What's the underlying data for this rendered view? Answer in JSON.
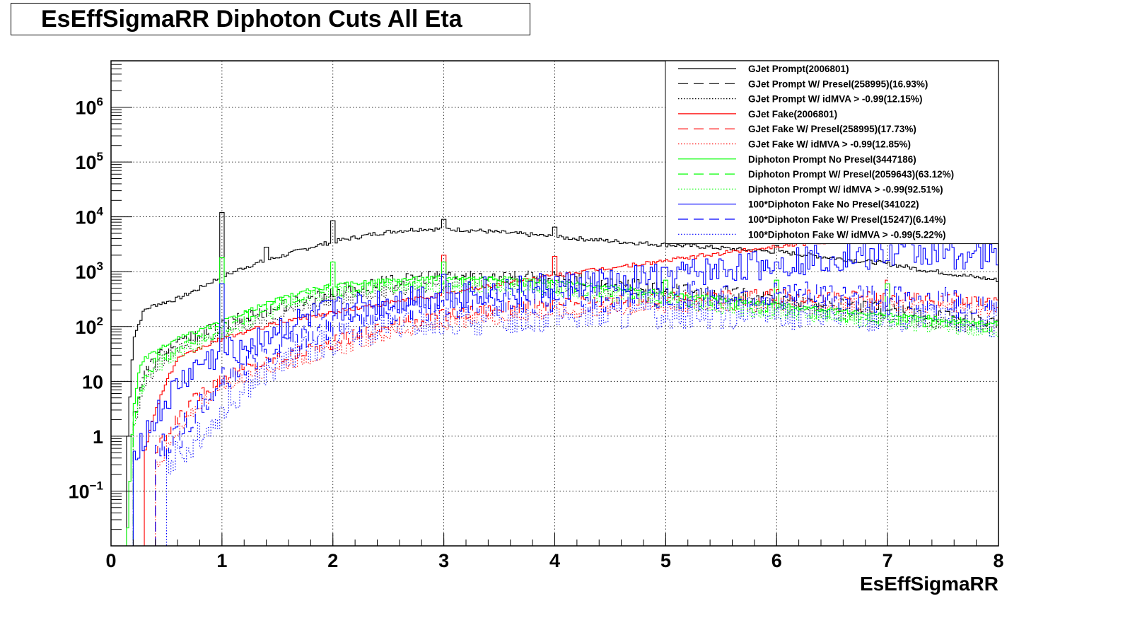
{
  "chart_data": {
    "type": "line",
    "title": "EsEffSigmaRR Diphoton Cuts All Eta",
    "xlabel": "EsEffSigmaRR",
    "ylabel": "",
    "xlim": [
      0,
      8
    ],
    "ylim": [
      0.01,
      7000000
    ],
    "log_y": true,
    "grid": true,
    "legend_placement": "top-right",
    "x_ticks": [
      "0",
      "1",
      "2",
      "3",
      "4",
      "5",
      "6",
      "7",
      "8"
    ],
    "y_ticks": [
      {
        "base": "10",
        "exp": "−1",
        "value": 0.1
      },
      {
        "base": "1",
        "exp": "",
        "value": 1
      },
      {
        "base": "10",
        "exp": "",
        "value": 10
      },
      {
        "base": "10",
        "exp": "2",
        "value": 100
      },
      {
        "base": "10",
        "exp": "3",
        "value": 1000
      },
      {
        "base": "10",
        "exp": "4",
        "value": 10000
      },
      {
        "base": "10",
        "exp": "5",
        "value": 100000
      },
      {
        "base": "10",
        "exp": "6",
        "value": 1000000
      }
    ],
    "series": [
      {
        "name": "GJet Prompt(2006801)",
        "color": "#000000",
        "dash": "solid",
        "x": [
          0.15,
          0.2,
          0.3,
          0.4,
          0.5,
          0.6,
          0.7,
          0.8,
          0.9,
          1.0,
          1.2,
          1.4,
          1.6,
          1.8,
          2.0,
          2.2,
          2.4,
          2.6,
          2.8,
          3.0,
          3.2,
          3.5,
          3.8,
          4.0,
          4.3,
          4.6,
          5.0,
          5.3,
          5.6,
          6.0,
          6.3,
          6.6,
          7.0,
          7.3,
          7.6,
          8.0
        ],
        "y": [
          1,
          60,
          200,
          250,
          280,
          320,
          400,
          500,
          650,
          800,
          1200,
          1600,
          2100,
          2800,
          3500,
          4200,
          5000,
          5600,
          6000,
          6000,
          5800,
          5200,
          4700,
          4300,
          3900,
          3500,
          3100,
          2900,
          2600,
          2300,
          2000,
          1700,
          1400,
          1100,
          900,
          700
        ],
        "spikes": [
          [
            1.0,
            12000
          ],
          [
            1.4,
            2800
          ],
          [
            2.0,
            8500
          ],
          [
            3.0,
            9000
          ],
          [
            4.0,
            6500
          ],
          [
            6.0,
            3000
          ]
        ]
      },
      {
        "name": "GJet Prompt W/ Presel(258995)(16.93%)",
        "color": "#000000",
        "dash": "long",
        "x": [
          0.2,
          0.3,
          0.5,
          0.7,
          1.0,
          1.3,
          1.6,
          2.0,
          2.4,
          2.8,
          3.0,
          3.4,
          3.8,
          4.2,
          4.6,
          5.0,
          5.5,
          6.0,
          6.5,
          7.0,
          7.5,
          8.0
        ],
        "y": [
          2,
          15,
          40,
          60,
          100,
          170,
          260,
          420,
          600,
          800,
          850,
          850,
          800,
          700,
          600,
          500,
          420,
          320,
          250,
          200,
          160,
          120
        ],
        "spikes": []
      },
      {
        "name": "GJet Prompt W/ idMVA > -0.99(12.15%)",
        "color": "#000000",
        "dash": "dot",
        "x": [
          0.2,
          0.3,
          0.5,
          0.7,
          1.0,
          1.3,
          1.6,
          2.0,
          2.4,
          2.8,
          3.0,
          3.4,
          3.8,
          4.2,
          4.6,
          5.0,
          5.5,
          6.0,
          6.5,
          7.0,
          7.5,
          8.0
        ],
        "y": [
          1,
          10,
          30,
          45,
          75,
          120,
          190,
          300,
          430,
          550,
          600,
          620,
          600,
          520,
          450,
          380,
          320,
          250,
          190,
          150,
          120,
          90
        ],
        "spikes": []
      },
      {
        "name": "GJet Fake(2006801)",
        "color": "#ff0000",
        "dash": "solid",
        "x": [
          0.3,
          0.4,
          0.5,
          0.6,
          0.8,
          1.0,
          1.3,
          1.6,
          2.0,
          2.3,
          2.6,
          3.0,
          3.3,
          3.6,
          4.0,
          4.4,
          4.8,
          5.2,
          5.6,
          6.0,
          6.4,
          6.8,
          7.2,
          7.6,
          8.0
        ],
        "y": [
          0.5,
          3,
          10,
          25,
          40,
          60,
          90,
          130,
          180,
          230,
          290,
          380,
          500,
          650,
          850,
          1100,
          1400,
          1800,
          2300,
          2900,
          3500,
          4000,
          4500,
          4800,
          5000
        ],
        "spikes": [
          [
            3.0,
            2000
          ],
          [
            4.0,
            1900
          ]
        ]
      },
      {
        "name": "GJet Fake W/ Presel(258995)(17.73%)",
        "color": "#ff0000",
        "dash": "long",
        "x": [
          0.4,
          0.6,
          0.8,
          1.0,
          1.3,
          1.6,
          2.0,
          2.3,
          2.6,
          3.0,
          3.4,
          3.8,
          4.2,
          4.6,
          5.0,
          5.4,
          5.8,
          6.2,
          6.6,
          7.0,
          7.4,
          7.8,
          8.0
        ],
        "y": [
          0.5,
          2,
          6,
          12,
          20,
          30,
          50,
          80,
          120,
          160,
          200,
          240,
          270,
          300,
          330,
          350,
          360,
          360,
          350,
          340,
          320,
          300,
          290
        ],
        "spikes": [
          [
            7.0,
            700
          ]
        ]
      },
      {
        "name": "GJet Fake W/ idMVA > -0.99(12.85%)",
        "color": "#ff0000",
        "dash": "dot",
        "x": [
          0.4,
          0.6,
          0.8,
          1.0,
          1.3,
          1.6,
          2.0,
          2.3,
          2.6,
          3.0,
          3.4,
          3.8,
          4.2,
          4.6,
          5.0,
          5.4,
          5.8,
          6.2,
          6.6,
          7.0,
          7.4,
          7.8,
          8.0
        ],
        "y": [
          0.3,
          1,
          4,
          8,
          14,
          22,
          35,
          55,
          85,
          110,
          140,
          170,
          190,
          210,
          230,
          240,
          250,
          250,
          245,
          240,
          230,
          215,
          210
        ],
        "spikes": []
      },
      {
        "name": "Diphoton Prompt No Presel(3447186)",
        "color": "#00ff00",
        "dash": "solid",
        "x": [
          0.15,
          0.2,
          0.25,
          0.3,
          0.4,
          0.5,
          0.6,
          0.8,
          1.0,
          1.2,
          1.4,
          1.6,
          1.8,
          2.0,
          2.3,
          2.6,
          3.0,
          3.4,
          3.8,
          4.2,
          4.6,
          5.0,
          5.5,
          6.0,
          6.5,
          7.0,
          7.5,
          8.0
        ],
        "y": [
          0.02,
          3,
          15,
          25,
          35,
          45,
          60,
          85,
          120,
          180,
          260,
          360,
          460,
          550,
          650,
          720,
          780,
          760,
          700,
          600,
          500,
          400,
          320,
          250,
          200,
          160,
          130,
          110
        ],
        "spikes": [
          [
            1.0,
            1800
          ],
          [
            2.0,
            1500
          ],
          [
            3.0,
            1500
          ],
          [
            5.0,
            700
          ],
          [
            6.0,
            700
          ],
          [
            7.0,
            600
          ]
        ]
      },
      {
        "name": "Diphoton Prompt W/ Presel(2059643)(63.12%)",
        "color": "#00ff00",
        "dash": "long",
        "x": [
          0.2,
          0.3,
          0.4,
          0.5,
          0.6,
          0.8,
          1.0,
          1.2,
          1.4,
          1.6,
          1.8,
          2.0,
          2.3,
          2.6,
          3.0,
          3.4,
          3.8,
          4.2,
          4.6,
          5.0,
          5.5,
          6.0,
          6.5,
          7.0,
          7.5,
          8.0
        ],
        "y": [
          2,
          12,
          22,
          30,
          40,
          60,
          90,
          140,
          210,
          290,
          380,
          460,
          540,
          600,
          640,
          630,
          580,
          500,
          420,
          340,
          270,
          210,
          170,
          140,
          120,
          100
        ],
        "spikes": []
      },
      {
        "name": "Diphoton Prompt W/ idMVA > -0.99(92.51%)",
        "color": "#00ff00",
        "dash": "dot",
        "x": [
          0.2,
          0.3,
          0.4,
          0.5,
          0.6,
          0.8,
          1.0,
          1.2,
          1.4,
          1.6,
          1.8,
          2.0,
          2.3,
          2.6,
          3.0,
          3.4,
          3.8,
          4.2,
          4.6,
          5.0,
          5.5,
          6.0,
          6.5,
          7.0,
          7.5,
          8.0
        ],
        "y": [
          1.5,
          10,
          18,
          25,
          33,
          50,
          75,
          115,
          170,
          240,
          320,
          390,
          460,
          510,
          540,
          530,
          490,
          420,
          350,
          290,
          230,
          180,
          145,
          120,
          100,
          85
        ],
        "spikes": []
      },
      {
        "name": "100*Diphoton Fake No Presel(341022)",
        "color": "#0000ff",
        "dash": "solid",
        "x": [
          0.2,
          0.4,
          0.6,
          0.8,
          1.0,
          1.2,
          1.4,
          1.6,
          1.8,
          2.0,
          2.2,
          2.4,
          2.6,
          2.8,
          3.0,
          3.3,
          3.6,
          4.0,
          4.4,
          4.8,
          5.2,
          5.6,
          6.0,
          6.4,
          6.8,
          7.2,
          7.6,
          8.0
        ],
        "y": [
          0.5,
          2,
          8,
          20,
          30,
          45,
          70,
          100,
          140,
          180,
          220,
          260,
          300,
          340,
          380,
          420,
          460,
          520,
          600,
          750,
          900,
          1100,
          1400,
          1700,
          2000,
          2200,
          2000,
          1800
        ],
        "spikes": [
          [
            1.0,
            600
          ],
          [
            3.0,
            900
          ],
          [
            5.0,
            1200
          ],
          [
            6.0,
            1500
          ],
          [
            7.0,
            1600
          ]
        ]
      },
      {
        "name": "100*Diphoton Fake W/ Presel(15247)(6.14%)",
        "color": "#0000ff",
        "dash": "long",
        "x": [
          0.4,
          0.6,
          0.8,
          1.0,
          1.2,
          1.4,
          1.6,
          1.8,
          2.0,
          2.2,
          2.4,
          2.6,
          2.8,
          3.0,
          3.3,
          3.6,
          4.0,
          4.4,
          4.8,
          5.2,
          5.6,
          6.0,
          6.4,
          6.8,
          7.2,
          7.6,
          8.0
        ],
        "y": [
          0.5,
          1,
          3,
          10,
          20,
          40,
          60,
          80,
          110,
          140,
          170,
          200,
          230,
          250,
          280,
          300,
          320,
          340,
          350,
          360,
          360,
          350,
          340,
          320,
          300,
          280,
          260
        ],
        "spikes": []
      },
      {
        "name": "100*Diphoton Fake W/ idMVA > -0.99(5.22%)",
        "color": "#0000ff",
        "dash": "dot",
        "x": [
          0.5,
          0.8,
          1.0,
          1.2,
          1.4,
          1.6,
          1.8,
          2.0,
          2.2,
          2.4,
          2.6,
          2.8,
          3.0,
          3.3,
          3.6,
          4.0,
          4.4,
          4.8,
          5.2,
          5.6,
          6.0,
          6.4,
          6.8,
          7.2,
          7.6,
          8.0
        ],
        "y": [
          0.3,
          1,
          3,
          8,
          15,
          25,
          40,
          55,
          70,
          85,
          100,
          110,
          120,
          130,
          140,
          150,
          160,
          165,
          170,
          170,
          165,
          160,
          150,
          140,
          130,
          120
        ],
        "spikes": []
      }
    ]
  }
}
